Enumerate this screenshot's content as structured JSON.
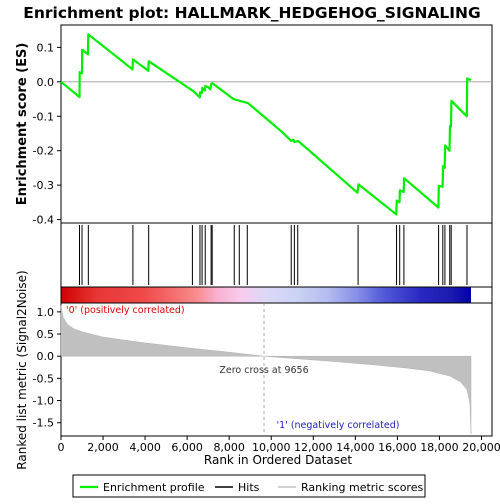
{
  "chart_data": {
    "type": "line",
    "title": "Enrichment plot: HALLMARK_HEDGEHOG_SIGNALING",
    "xlabel": "Rank in Ordered Dataset",
    "ylabel_top": "Enrichment score (ES)",
    "ylabel_bottom": "Ranked list metric (Signal2Noise)",
    "xlim": [
      0,
      20500
    ],
    "xticks": [
      0,
      2000,
      4000,
      6000,
      8000,
      10000,
      12000,
      14000,
      16000,
      18000,
      20000
    ],
    "xtick_labels": [
      "0",
      "2,000",
      "4,000",
      "6,000",
      "8,000",
      "10,000",
      "12,000",
      "14,000",
      "16,000",
      "18,000",
      "20,000"
    ],
    "es_ylim": [
      -0.41,
      0.165
    ],
    "es_yticks": [
      0.1,
      0.0,
      -0.1,
      -0.2,
      -0.3,
      -0.4
    ],
    "es_ytick_labels": [
      "0.1",
      "0.0",
      "-0.1",
      "-0.2",
      "-0.3",
      "-0.4"
    ],
    "metric_ylim": [
      -1.8,
      1.2
    ],
    "metric_yticks": [
      1.0,
      0.5,
      0.0,
      -0.5,
      -1.0,
      -1.5
    ],
    "metric_ytick_labels": [
      "1.0",
      "0.5",
      "0.0",
      "-0.5",
      "-1.0",
      "-1.5"
    ],
    "series": [
      {
        "name": "Enrichment profile",
        "color": "#00ee00",
        "points": [
          [
            0,
            0.0
          ],
          [
            880,
            -0.044
          ],
          [
            890,
            0.028
          ],
          [
            1000,
            0.025
          ],
          [
            1010,
            0.093
          ],
          [
            1280,
            0.08
          ],
          [
            1300,
            0.138
          ],
          [
            3400,
            0.036
          ],
          [
            3420,
            0.065
          ],
          [
            4150,
            0.032
          ],
          [
            4170,
            0.06
          ],
          [
            6240,
            -0.025
          ],
          [
            6260,
            -0.025
          ],
          [
            6600,
            -0.045
          ],
          [
            6620,
            -0.03
          ],
          [
            6700,
            -0.032
          ],
          [
            6720,
            -0.018
          ],
          [
            6850,
            -0.025
          ],
          [
            6870,
            -0.012
          ],
          [
            7000,
            -0.016
          ],
          [
            7100,
            -0.022
          ],
          [
            7150,
            -0.006
          ],
          [
            7200,
            -0.004
          ],
          [
            8200,
            -0.05
          ],
          [
            8500,
            -0.055
          ],
          [
            8900,
            -0.062
          ],
          [
            9400,
            -0.088
          ],
          [
            10500,
            -0.145
          ],
          [
            10950,
            -0.172
          ],
          [
            11050,
            -0.168
          ],
          [
            11100,
            -0.175
          ],
          [
            11280,
            -0.172
          ],
          [
            11400,
            -0.178
          ],
          [
            14100,
            -0.322
          ],
          [
            14150,
            -0.298
          ],
          [
            15950,
            -0.385
          ],
          [
            15970,
            -0.345
          ],
          [
            16100,
            -0.35
          ],
          [
            16120,
            -0.315
          ],
          [
            16300,
            -0.32
          ],
          [
            16320,
            -0.28
          ],
          [
            17950,
            -0.365
          ],
          [
            17970,
            -0.302
          ],
          [
            18150,
            -0.305
          ],
          [
            18170,
            -0.245
          ],
          [
            18250,
            -0.25
          ],
          [
            18270,
            -0.185
          ],
          [
            18480,
            -0.2
          ],
          [
            18500,
            -0.128
          ],
          [
            18550,
            -0.13
          ],
          [
            18570,
            -0.055
          ],
          [
            19300,
            -0.1
          ],
          [
            19320,
            0.01
          ],
          [
            19500,
            0.005
          ]
        ]
      }
    ],
    "hits": [
      880,
      1000,
      1300,
      3420,
      4170,
      6250,
      6610,
      6710,
      6860,
      7140,
      7190,
      8240,
      8480,
      8860,
      10950,
      11100,
      11260,
      14130,
      15960,
      16110,
      16310,
      17960,
      18160,
      18260,
      18490,
      18560,
      19310
    ],
    "heatmap": {
      "stops": [
        {
          "offset": 0,
          "color": "#d00000"
        },
        {
          "offset": 0.09,
          "color": "#e83838"
        },
        {
          "offset": 0.2,
          "color": "#f04848"
        },
        {
          "offset": 0.27,
          "color": "#f46c6c"
        },
        {
          "offset": 0.33,
          "color": "#f88c8c"
        },
        {
          "offset": 0.38,
          "color": "#f8b0d0"
        },
        {
          "offset": 0.44,
          "color": "#f8ccee"
        },
        {
          "offset": 0.5,
          "color": "#dcd8f6"
        },
        {
          "offset": 0.57,
          "color": "#ccd4f6"
        },
        {
          "offset": 0.65,
          "color": "#b4bcf0"
        },
        {
          "offset": 0.72,
          "color": "#8890e8"
        },
        {
          "offset": 0.79,
          "color": "#5058d8"
        },
        {
          "offset": 0.88,
          "color": "#2828c0"
        },
        {
          "offset": 0.95,
          "color": "#1c1cb0"
        },
        {
          "offset": 1,
          "color": "#0000a8"
        }
      ]
    },
    "metric_curve": [
      [
        0,
        1.15
      ],
      [
        100,
        0.88
      ],
      [
        300,
        0.72
      ],
      [
        600,
        0.62
      ],
      [
        1000,
        0.55
      ],
      [
        2000,
        0.43
      ],
      [
        4000,
        0.3
      ],
      [
        6000,
        0.19
      ],
      [
        8000,
        0.09
      ],
      [
        9656,
        0.0
      ],
      [
        11000,
        -0.05
      ],
      [
        13000,
        -0.12
      ],
      [
        15000,
        -0.2
      ],
      [
        16500,
        -0.27
      ],
      [
        17500,
        -0.33
      ],
      [
        18500,
        -0.45
      ],
      [
        19000,
        -0.58
      ],
      [
        19300,
        -0.75
      ],
      [
        19450,
        -1.05
      ],
      [
        19500,
        -1.75
      ]
    ],
    "zero_cross_label": "Zero cross at 9656",
    "zero_cross_x": 9656,
    "positive_label": "'0' (positively correlated)",
    "negative_label": "'1' (negatively correlated)",
    "legend": [
      {
        "name": "Enrichment profile",
        "color": "#00ee00"
      },
      {
        "name": "Hits",
        "color": "#000000"
      },
      {
        "name": "Ranking metric scores",
        "color": "#c0c0c0"
      }
    ],
    "legend_position": "bottom"
  }
}
